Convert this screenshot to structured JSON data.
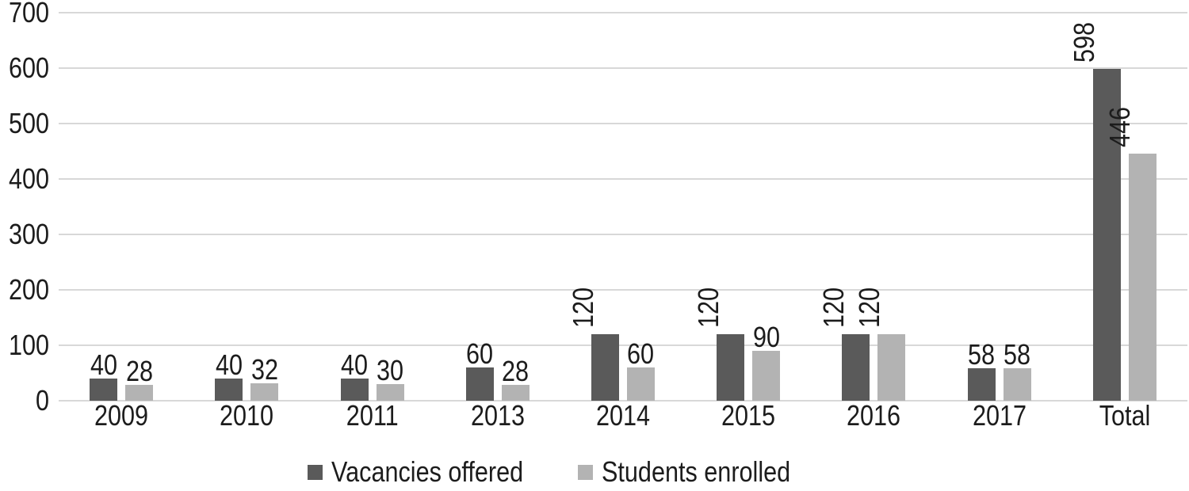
{
  "chart_data": {
    "type": "bar",
    "categories": [
      "2009",
      "2010",
      "2011",
      "2013",
      "2014",
      "2015",
      "2016",
      "2017",
      "Total"
    ],
    "series": [
      {
        "name": "Vacancies offered",
        "color": "#5a5a5a",
        "values": [
          40,
          40,
          40,
          60,
          120,
          120,
          120,
          58,
          598
        ]
      },
      {
        "name": "Students enrolled",
        "color": "#b3b3b3",
        "values": [
          28,
          32,
          30,
          28,
          60,
          90,
          120,
          58,
          446
        ]
      }
    ],
    "value_labels_shown": true,
    "value_label_rotation_rule": "labels for values >= 100 are rotated 90deg reading bottom-to-top",
    "y_axis": {
      "min": 0,
      "max": 700,
      "step": 100,
      "tick_labels": [
        "0",
        "100",
        "200",
        "300",
        "400",
        "500",
        "600",
        "700"
      ]
    },
    "grid": "horizontal",
    "legend_position": "bottom",
    "colors": {
      "gridline": "#d8d8d8",
      "text": "#1c1c1c",
      "background": "#ffffff"
    }
  },
  "legend": {
    "items": [
      {
        "label": "Vacancies offered"
      },
      {
        "label": "Students enrolled"
      }
    ]
  }
}
